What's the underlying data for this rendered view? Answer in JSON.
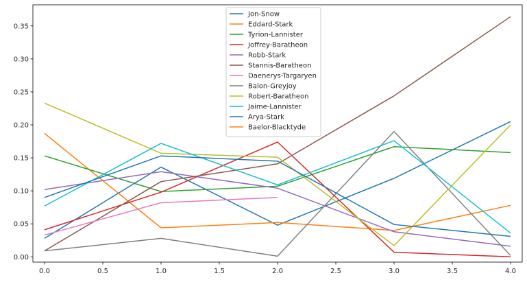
{
  "chart_data": {
    "type": "line",
    "title": "",
    "xlabel": "",
    "ylabel": "",
    "x": [
      0,
      1,
      2,
      3,
      4
    ],
    "xlim": [
      -0.1,
      4.1
    ],
    "ylim": [
      -0.008,
      0.382
    ],
    "xticks": [
      0.0,
      0.5,
      1.0,
      1.5,
      2.0,
      2.5,
      3.0,
      3.5,
      4.0
    ],
    "xtick_labels": [
      "0.0",
      "0.5",
      "1.0",
      "1.5",
      "2.0",
      "2.5",
      "3.0",
      "3.5",
      "4.0"
    ],
    "yticks": [
      0.0,
      0.05,
      0.1,
      0.15,
      0.2,
      0.25,
      0.3,
      0.35
    ],
    "ytick_labels": [
      "0.00",
      "0.05",
      "0.10",
      "0.15",
      "0.20",
      "0.25",
      "0.30",
      "0.35"
    ],
    "grid": false,
    "legend_position": "top-center",
    "series": [
      {
        "name": "Jon-Snow",
        "color": "#1f77b4",
        "values": [
          0.028,
          0.136,
          0.048,
          0.119,
          0.205
        ]
      },
      {
        "name": "Eddard-Stark",
        "color": "#ff7f0e",
        "values": [
          0.187,
          0.044,
          0.052,
          0.04,
          0.078
        ]
      },
      {
        "name": "Tyrion-Lannister",
        "color": "#2ca02c",
        "values": [
          0.153,
          0.099,
          0.107,
          0.167,
          0.158
        ]
      },
      {
        "name": "Joffrey-Baratheon",
        "color": "#d62728",
        "values": [
          0.041,
          0.098,
          0.174,
          0.007,
          0.0
        ]
      },
      {
        "name": "Robb-Stark",
        "color": "#9467bd",
        "values": [
          0.102,
          0.129,
          0.104,
          0.038,
          0.016
        ]
      },
      {
        "name": "Stannis-Baratheon",
        "color": "#8c564b",
        "values": [
          0.009,
          0.114,
          0.141,
          0.244,
          0.364
        ]
      },
      {
        "name": "Daenerys-Targaryen",
        "color": "#e377c2",
        "values": [
          0.033,
          0.082,
          0.09,
          null,
          null
        ]
      },
      {
        "name": "Balon-Greyjoy",
        "color": "#7f7f7f",
        "values": [
          0.009,
          0.028,
          0.001,
          0.19,
          0.002
        ]
      },
      {
        "name": "Robert-Baratheon",
        "color": "#bcbd22",
        "values": [
          0.233,
          0.157,
          0.151,
          0.017,
          0.2
        ]
      },
      {
        "name": "Jaime-Lannister",
        "color": "#17becf",
        "values": [
          0.077,
          0.172,
          0.109,
          0.176,
          0.036
        ]
      },
      {
        "name": "Arya-Stark",
        "color": "#1f77b4",
        "values": [
          0.09,
          0.153,
          0.145,
          0.049,
          0.031
        ]
      },
      {
        "name": "Baelor-Blacktyde",
        "color": "#ff7f0e",
        "values": [
          null,
          null,
          null,
          null,
          null
        ]
      }
    ]
  }
}
